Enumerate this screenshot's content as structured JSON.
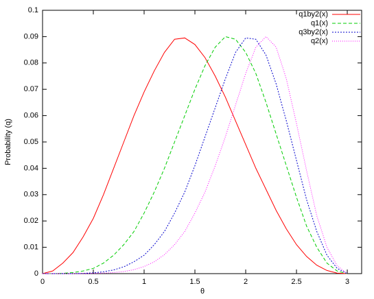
{
  "chart_data": {
    "type": "line",
    "xlabel": "θ",
    "ylabel": "Probability (q)",
    "x": [
      0,
      0.1,
      0.2,
      0.3,
      0.4,
      0.5,
      0.6,
      0.7,
      0.8,
      0.9,
      1.0,
      1.1,
      1.2,
      1.3,
      1.4,
      1.5,
      1.6,
      1.7,
      1.8,
      1.9,
      2.0,
      2.1,
      2.2,
      2.3,
      2.4,
      2.5,
      2.6,
      2.7,
      2.8,
      2.9,
      3.0
    ],
    "series": [
      {
        "name": "q1by2(x)",
        "color": "#ff0000",
        "values": [
          0,
          0.001,
          0.004,
          0.008,
          0.014,
          0.021,
          0.03,
          0.04,
          0.05,
          0.06,
          0.069,
          0.077,
          0.084,
          0.089,
          0.0895,
          0.087,
          0.082,
          0.075,
          0.067,
          0.058,
          0.049,
          0.04,
          0.032,
          0.024,
          0.017,
          0.011,
          0.0065,
          0.0032,
          0.0012,
          0.0002,
          0
        ]
      },
      {
        "name": "q1(x)",
        "color": "#00cc00",
        "values": [
          0,
          0,
          0.0001,
          0.0004,
          0.001,
          0.002,
          0.004,
          0.007,
          0.011,
          0.016,
          0.023,
          0.031,
          0.04,
          0.05,
          0.06,
          0.07,
          0.079,
          0.086,
          0.09,
          0.089,
          0.084,
          0.076,
          0.065,
          0.053,
          0.041,
          0.029,
          0.018,
          0.01,
          0.004,
          0.001,
          0
        ]
      },
      {
        "name": "q3by2(x)",
        "color": "#0000cc",
        "values": [
          0,
          0,
          0,
          0,
          0.0001,
          0.0003,
          0.0007,
          0.0014,
          0.0026,
          0.0045,
          0.007,
          0.011,
          0.016,
          0.023,
          0.031,
          0.041,
          0.052,
          0.063,
          0.074,
          0.084,
          0.0895,
          0.089,
          0.083,
          0.072,
          0.058,
          0.043,
          0.028,
          0.016,
          0.007,
          0.002,
          0
        ]
      },
      {
        "name": "q2(x)",
        "color": "#ff00ff",
        "values": [
          0,
          0,
          0,
          0,
          0,
          0.0001,
          0.0002,
          0.0004,
          0.0008,
          0.0015,
          0.0027,
          0.0045,
          0.0072,
          0.011,
          0.016,
          0.023,
          0.031,
          0.041,
          0.052,
          0.064,
          0.076,
          0.086,
          0.09,
          0.086,
          0.074,
          0.057,
          0.039,
          0.022,
          0.01,
          0.003,
          0
        ]
      }
    ],
    "xlim": [
      0,
      3.14159
    ],
    "ylim": [
      0,
      0.1
    ],
    "xticks": [
      0,
      0.5,
      1,
      1.5,
      2,
      2.5,
      3
    ],
    "yticks": [
      0,
      0.01,
      0.02,
      0.03,
      0.04,
      0.05,
      0.06,
      0.07,
      0.08,
      0.09,
      0.1
    ],
    "legend": "top-right",
    "grid": false
  }
}
